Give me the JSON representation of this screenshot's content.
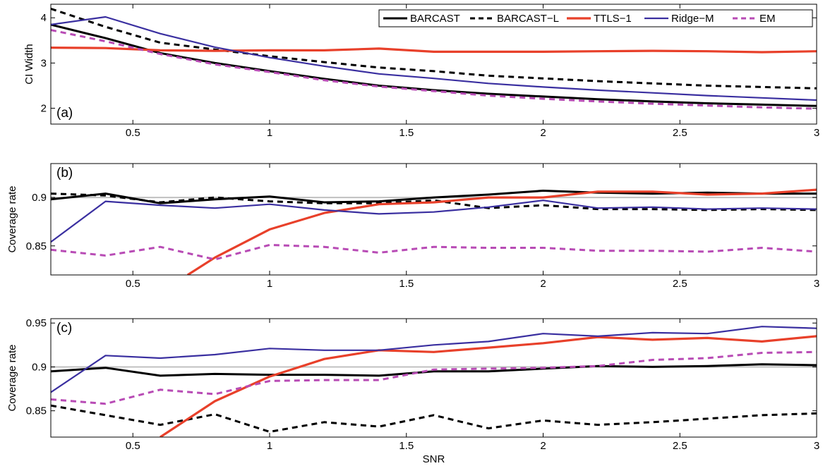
{
  "chart_data": [
    {
      "type": "line",
      "panel_label": "(a)",
      "xlabel": "",
      "ylabel": "CI Width",
      "xlim": [
        0.2,
        3
      ],
      "ylim": [
        1.65,
        4.3
      ],
      "xticks": [
        0.5,
        1,
        1.5,
        2,
        2.5,
        3
      ],
      "xtick_labels": [
        "0.5",
        "1",
        "1.5",
        "2",
        "2.5",
        "3"
      ],
      "yticks": [
        2,
        3,
        4
      ],
      "ytick_labels": [
        "2",
        "3",
        "4"
      ],
      "legend": {
        "placement": "top-right",
        "entries": [
          "BARCAST",
          "BARCAST−L",
          "TTLS−1",
          "Ridge−M",
          "EM"
        ]
      },
      "series": [
        {
          "name": "BARCAST",
          "color": "#000000",
          "dash": "solid",
          "x": [
            0.2,
            0.4,
            0.6,
            0.8,
            1.0,
            1.2,
            1.4,
            1.6,
            1.8,
            2.0,
            2.2,
            2.4,
            2.6,
            2.8,
            3.0
          ],
          "values": [
            3.85,
            3.55,
            3.22,
            3.0,
            2.82,
            2.65,
            2.5,
            2.4,
            2.32,
            2.26,
            2.2,
            2.15,
            2.11,
            2.08,
            2.05
          ]
        },
        {
          "name": "BARCAST−L",
          "color": "#000000",
          "dash": "dashed",
          "x": [
            0.2,
            0.4,
            0.6,
            0.8,
            1.0,
            1.2,
            1.4,
            1.6,
            1.8,
            2.0,
            2.2,
            2.4,
            2.6,
            2.8,
            3.0
          ],
          "values": [
            4.2,
            3.8,
            3.45,
            3.3,
            3.15,
            3.02,
            2.9,
            2.82,
            2.72,
            2.66,
            2.6,
            2.55,
            2.5,
            2.47,
            2.44
          ]
        },
        {
          "name": "TTLS−1",
          "color": "#e8402a",
          "dash": "solid",
          "x": [
            0.2,
            0.4,
            0.6,
            0.8,
            1.0,
            1.2,
            1.4,
            1.6,
            1.8,
            2.0,
            2.2,
            2.4,
            2.6,
            2.8,
            3.0
          ],
          "values": [
            3.34,
            3.33,
            3.28,
            3.27,
            3.28,
            3.28,
            3.32,
            3.25,
            3.25,
            3.25,
            3.26,
            3.27,
            3.26,
            3.24,
            3.26
          ]
        },
        {
          "name": "Ridge−M",
          "color": "#3a2fa0",
          "dash": "solid",
          "x": [
            0.2,
            0.4,
            0.6,
            0.8,
            1.0,
            1.2,
            1.4,
            1.6,
            1.8,
            2.0,
            2.2,
            2.4,
            2.6,
            2.8,
            3.0
          ],
          "values": [
            3.85,
            4.02,
            3.65,
            3.35,
            3.12,
            2.93,
            2.76,
            2.66,
            2.55,
            2.47,
            2.4,
            2.34,
            2.28,
            2.23,
            2.18
          ]
        },
        {
          "name": "EM",
          "color": "#b84bb5",
          "dash": "dashed",
          "x": [
            0.2,
            0.4,
            0.6,
            0.8,
            1.0,
            1.2,
            1.4,
            1.6,
            1.8,
            2.0,
            2.2,
            2.4,
            2.6,
            2.8,
            3.0
          ],
          "values": [
            3.73,
            3.48,
            3.2,
            2.97,
            2.8,
            2.62,
            2.48,
            2.38,
            2.28,
            2.21,
            2.15,
            2.1,
            2.06,
            2.02,
            1.99
          ]
        }
      ]
    },
    {
      "type": "line",
      "panel_label": "(b)",
      "xlabel": "",
      "ylabel": "Coverage rate",
      "xlim": [
        0.2,
        3
      ],
      "ylim": [
        0.82,
        0.935
      ],
      "xticks": [
        0.5,
        1,
        1.5,
        2,
        2.5,
        3
      ],
      "xtick_labels": [
        "0.5",
        "1",
        "1.5",
        "2",
        "2.5",
        "3"
      ],
      "yticks": [
        0.85,
        0.9
      ],
      "ytick_labels": [
        "0.85",
        "0.9"
      ],
      "reference_line": 0.9,
      "series": [
        {
          "name": "BARCAST",
          "color": "#000000",
          "dash": "solid",
          "x": [
            0.2,
            0.4,
            0.6,
            0.8,
            1.0,
            1.2,
            1.4,
            1.6,
            1.8,
            2.0,
            2.2,
            2.4,
            2.6,
            2.8,
            3.0
          ],
          "values": [
            0.898,
            0.904,
            0.894,
            0.898,
            0.901,
            0.895,
            0.896,
            0.9,
            0.903,
            0.907,
            0.905,
            0.904,
            0.905,
            0.904,
            0.904
          ]
        },
        {
          "name": "BARCAST−L",
          "color": "#000000",
          "dash": "dashed",
          "x": [
            0.2,
            0.4,
            0.6,
            0.8,
            1.0,
            1.2,
            1.4,
            1.6,
            1.8,
            2.0,
            2.2,
            2.4,
            2.6,
            2.8,
            3.0
          ],
          "values": [
            0.904,
            0.902,
            0.895,
            0.9,
            0.896,
            0.894,
            0.894,
            0.897,
            0.889,
            0.892,
            0.888,
            0.888,
            0.887,
            0.888,
            0.887
          ]
        },
        {
          "name": "TTLS−1",
          "color": "#e8402a",
          "dash": "solid",
          "x": [
            0.7,
            0.8,
            1.0,
            1.2,
            1.4,
            1.6,
            1.8,
            2.0,
            2.2,
            2.4,
            2.6,
            2.8,
            3.0
          ],
          "values": [
            0.82,
            0.838,
            0.867,
            0.884,
            0.893,
            0.895,
            0.9,
            0.9,
            0.906,
            0.906,
            0.903,
            0.904,
            0.908
          ]
        },
        {
          "name": "Ridge−M",
          "color": "#3a2fa0",
          "dash": "solid",
          "x": [
            0.2,
            0.4,
            0.6,
            0.8,
            1.0,
            1.2,
            1.4,
            1.6,
            1.8,
            2.0,
            2.2,
            2.4,
            2.6,
            2.8,
            3.0
          ],
          "values": [
            0.854,
            0.896,
            0.892,
            0.889,
            0.893,
            0.887,
            0.883,
            0.885,
            0.89,
            0.897,
            0.889,
            0.89,
            0.888,
            0.889,
            0.888
          ]
        },
        {
          "name": "EM",
          "color": "#b84bb5",
          "dash": "dashed",
          "x": [
            0.2,
            0.4,
            0.6,
            0.8,
            1.0,
            1.2,
            1.4,
            1.6,
            1.8,
            2.0,
            2.2,
            2.4,
            2.6,
            2.8,
            3.0
          ],
          "values": [
            0.846,
            0.84,
            0.849,
            0.836,
            0.851,
            0.849,
            0.843,
            0.849,
            0.848,
            0.848,
            0.845,
            0.845,
            0.844,
            0.848,
            0.844
          ]
        }
      ]
    },
    {
      "type": "line",
      "panel_label": "(c)",
      "xlabel": "SNR",
      "ylabel": "Coverage rate",
      "xlim": [
        0.2,
        3
      ],
      "ylim": [
        0.82,
        0.955
      ],
      "xticks": [
        0.5,
        1,
        1.5,
        2,
        2.5,
        3
      ],
      "xtick_labels": [
        "0.5",
        "1",
        "1.5",
        "2",
        "2.5",
        "3"
      ],
      "yticks": [
        0.85,
        0.9,
        0.95
      ],
      "ytick_labels": [
        "0.85",
        "0.9",
        "0.95"
      ],
      "reference_line": 0.9,
      "series": [
        {
          "name": "BARCAST",
          "color": "#000000",
          "dash": "solid",
          "x": [
            0.2,
            0.4,
            0.6,
            0.8,
            1.0,
            1.2,
            1.4,
            1.6,
            1.8,
            2.0,
            2.2,
            2.4,
            2.6,
            2.8,
            3.0
          ],
          "values": [
            0.895,
            0.899,
            0.89,
            0.892,
            0.891,
            0.891,
            0.89,
            0.895,
            0.895,
            0.898,
            0.901,
            0.9,
            0.901,
            0.903,
            0.902
          ]
        },
        {
          "name": "BARCAST−L",
          "color": "#000000",
          "dash": "dashed",
          "x": [
            0.2,
            0.4,
            0.6,
            0.8,
            1.0,
            1.2,
            1.4,
            1.6,
            1.8,
            2.0,
            2.2,
            2.4,
            2.6,
            2.8,
            3.0
          ],
          "values": [
            0.856,
            0.845,
            0.834,
            0.846,
            0.826,
            0.837,
            0.832,
            0.845,
            0.83,
            0.839,
            0.834,
            0.837,
            0.841,
            0.845,
            0.847
          ]
        },
        {
          "name": "TTLS−1",
          "color": "#e8402a",
          "dash": "solid",
          "x": [
            0.6,
            0.8,
            1.0,
            1.2,
            1.4,
            1.6,
            1.8,
            2.0,
            2.2,
            2.4,
            2.6,
            2.8,
            3.0
          ],
          "values": [
            0.82,
            0.861,
            0.889,
            0.909,
            0.919,
            0.917,
            0.922,
            0.927,
            0.934,
            0.931,
            0.933,
            0.929,
            0.935
          ]
        },
        {
          "name": "Ridge−M",
          "color": "#3a2fa0",
          "dash": "solid",
          "x": [
            0.2,
            0.4,
            0.6,
            0.8,
            1.0,
            1.2,
            1.4,
            1.6,
            1.8,
            2.0,
            2.2,
            2.4,
            2.6,
            2.8,
            3.0
          ],
          "values": [
            0.871,
            0.913,
            0.91,
            0.914,
            0.921,
            0.919,
            0.919,
            0.925,
            0.929,
            0.938,
            0.935,
            0.939,
            0.938,
            0.946,
            0.944
          ]
        },
        {
          "name": "EM",
          "color": "#b84bb5",
          "dash": "dashed",
          "x": [
            0.2,
            0.4,
            0.6,
            0.8,
            1.0,
            1.2,
            1.4,
            1.6,
            1.8,
            2.0,
            2.2,
            2.4,
            2.6,
            2.8,
            3.0
          ],
          "values": [
            0.863,
            0.858,
            0.874,
            0.869,
            0.884,
            0.885,
            0.885,
            0.897,
            0.898,
            0.899,
            0.901,
            0.908,
            0.91,
            0.916,
            0.917
          ]
        }
      ]
    }
  ]
}
